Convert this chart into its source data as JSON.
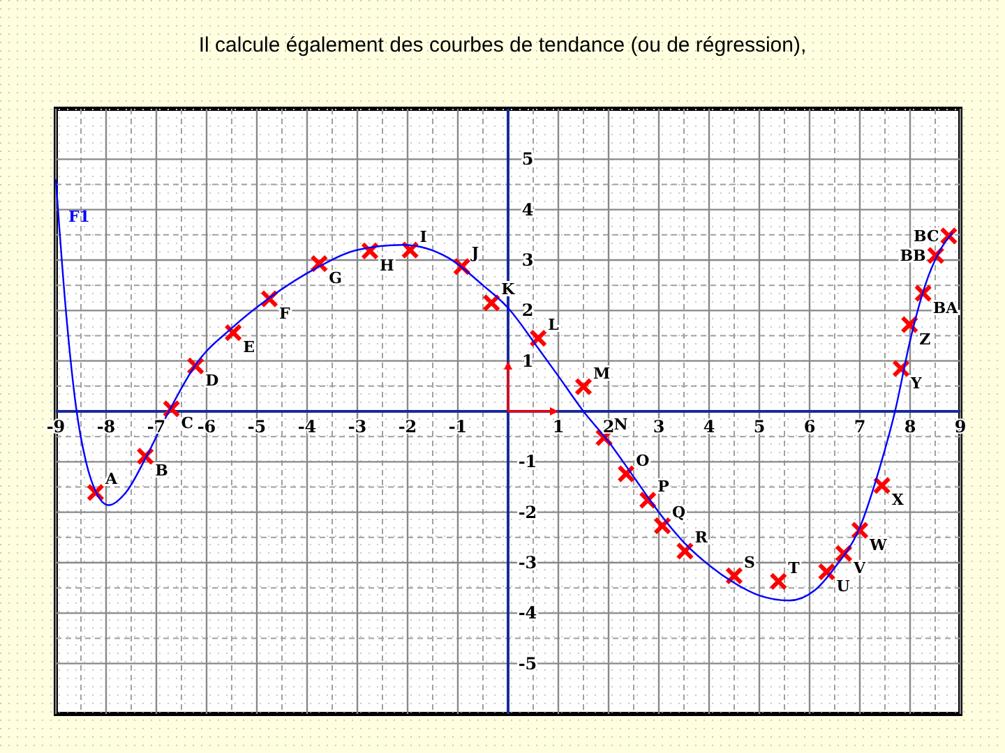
{
  "chart_data": {
    "type": "scatter",
    "title": "Il calcule également des courbes de tendance (ou de régression),",
    "xlim": [
      -9,
      9
    ],
    "ylim": [
      -6,
      6
    ],
    "xticks": [
      -9,
      -8,
      -7,
      -6,
      -5,
      -4,
      -3,
      -2,
      -1,
      1,
      2,
      3,
      4,
      5,
      6,
      7,
      8,
      9
    ],
    "yticks": [
      -5,
      -4,
      -3,
      -2,
      -1,
      1,
      2,
      3,
      4,
      5
    ],
    "grid": true,
    "series": [
      {
        "color": "#ff0000",
        "marker": "cross",
        "x": [
          -8.21,
          -7.22,
          -6.7,
          -6.22,
          -5.47,
          -4.75,
          -3.76,
          -2.75,
          -1.95,
          -0.92,
          -0.33,
          0.6,
          1.5,
          1.91,
          2.35,
          2.78,
          3.07,
          3.52,
          4.5,
          5.38,
          6.34,
          6.68,
          7.0,
          7.44,
          7.82,
          7.99,
          8.26,
          8.51,
          8.77
        ],
        "values": [
          -1.61,
          -0.89,
          0.05,
          0.9,
          1.56,
          2.23,
          2.93,
          3.18,
          3.2,
          2.87,
          2.15,
          1.45,
          0.49,
          -0.52,
          -1.24,
          -1.76,
          -2.27,
          -2.77,
          -3.26,
          -3.37,
          -3.18,
          -2.82,
          -2.36,
          -1.47,
          0.85,
          1.72,
          2.34,
          3.09,
          3.48
        ]
      },
      {
        "type": "line",
        "name": "F1",
        "color": "#0000ff",
        "marker": "none",
        "x": [
          -9,
          -8.8,
          -8.6,
          -8.4,
          -8.2,
          -7.95,
          -7.6,
          -7.2,
          -6.75,
          -6.2,
          -5.5,
          -4.75,
          -3.8,
          -3,
          -2.1,
          -1.2,
          -0.5,
          0,
          0.6,
          1,
          1.5,
          2,
          2.5,
          3,
          3.5,
          4,
          4.5,
          5,
          5.6,
          6.1,
          6.5,
          7,
          7.4,
          7.7,
          8,
          8.3,
          8.6,
          8.85
        ],
        "values": [
          4.6,
          2.0,
          0.1,
          -1.0,
          -1.6,
          -1.86,
          -1.6,
          -0.9,
          0,
          0.95,
          1.65,
          2.25,
          2.85,
          3.2,
          3.3,
          3.05,
          2.5,
          2.05,
          1.25,
          0.7,
          0,
          -0.6,
          -1.3,
          -2.0,
          -2.6,
          -3.05,
          -3.4,
          -3.65,
          -3.75,
          -3.55,
          -3.1,
          -2.3,
          -1.1,
          0,
          1.4,
          2.5,
          3.2,
          3.55
        ]
      }
    ],
    "annotations": [
      {
        "text": "A",
        "x": -8.21,
        "y": -1.61
      },
      {
        "text": "B",
        "x": -7.22,
        "y": -0.89
      },
      {
        "text": "C",
        "x": -6.7,
        "y": 0.05
      },
      {
        "text": "D",
        "x": -6.22,
        "y": 0.9
      },
      {
        "text": "E",
        "x": -5.47,
        "y": 1.56
      },
      {
        "text": "F",
        "x": -4.75,
        "y": 2.23
      },
      {
        "text": "G",
        "x": -3.76,
        "y": 2.93
      },
      {
        "text": "H",
        "x": -2.75,
        "y": 3.18
      },
      {
        "text": "I",
        "x": -1.95,
        "y": 3.2
      },
      {
        "text": "J",
        "x": -0.92,
        "y": 2.87
      },
      {
        "text": "K",
        "x": -0.33,
        "y": 2.15
      },
      {
        "text": "L",
        "x": 0.6,
        "y": 1.45
      },
      {
        "text": "M",
        "x": 1.5,
        "y": 0.49
      },
      {
        "text": "N",
        "x": 1.91,
        "y": -0.52
      },
      {
        "text": "O",
        "x": 2.35,
        "y": -1.24
      },
      {
        "text": "P",
        "x": 2.78,
        "y": -1.76
      },
      {
        "text": "Q",
        "x": 3.07,
        "y": -2.27
      },
      {
        "text": "R",
        "x": 3.52,
        "y": -2.77
      },
      {
        "text": "S",
        "x": 4.5,
        "y": -3.26
      },
      {
        "text": "T",
        "x": 5.38,
        "y": -3.37
      },
      {
        "text": "U",
        "x": 6.34,
        "y": -3.18
      },
      {
        "text": "V",
        "x": 6.68,
        "y": -2.82
      },
      {
        "text": "W",
        "x": 7.0,
        "y": -2.36
      },
      {
        "text": "X",
        "x": 7.44,
        "y": -1.47
      },
      {
        "text": "Y",
        "x": 7.82,
        "y": 0.85
      },
      {
        "text": "Z",
        "x": 7.99,
        "y": 1.72
      },
      {
        "text": "BA",
        "x": 8.26,
        "y": 2.34
      },
      {
        "text": "BB",
        "x": 8.51,
        "y": 3.09
      },
      {
        "text": "BC",
        "x": 8.77,
        "y": 3.48
      }
    ]
  }
}
